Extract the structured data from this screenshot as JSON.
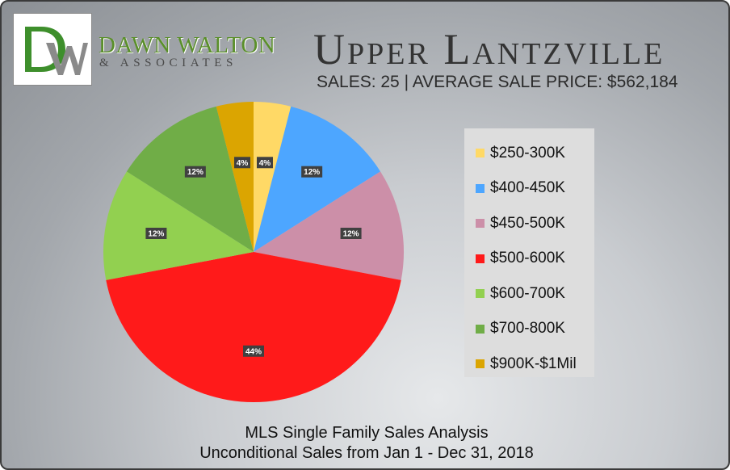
{
  "header": {
    "logo_initials": "DW",
    "brand_name": "DAWN WALTON",
    "brand_sub": "& ASSOCIATES",
    "title": "Upper Lantzville",
    "subtitle": "SALES: 25  |  AVERAGE SALE PRICE: $562,184"
  },
  "footer": {
    "line1": "MLS Single Family Sales Analysis",
    "line2": "Unconditional Sales from Jan 1 - Dec 31, 2018"
  },
  "colors": {
    "logo_green": "#3e8f2c",
    "logo_gray": "#8a8a8a",
    "brand_green": "#5a8f2a",
    "label_bg": "#404040",
    "legend_bg": "#dddddd"
  },
  "chart_data": {
    "type": "pie",
    "categories": [
      "$250-300K",
      "$400-450K",
      "$450-500K",
      "$500-600K",
      "$600-700K",
      "$700-800K",
      "$900K-$1Mil"
    ],
    "values": [
      4,
      12,
      12,
      44,
      12,
      12,
      4
    ],
    "labels": [
      "4%",
      "12%",
      "12%",
      "44%",
      "12%",
      "12%",
      "4%"
    ],
    "colors": [
      "#ffd966",
      "#4da6ff",
      "#cc8fa8",
      "#ff1a1a",
      "#92d050",
      "#70ad47",
      "#dba501"
    ],
    "legend": "right",
    "start_angle": "12 o'clock",
    "direction": "clockwise"
  }
}
